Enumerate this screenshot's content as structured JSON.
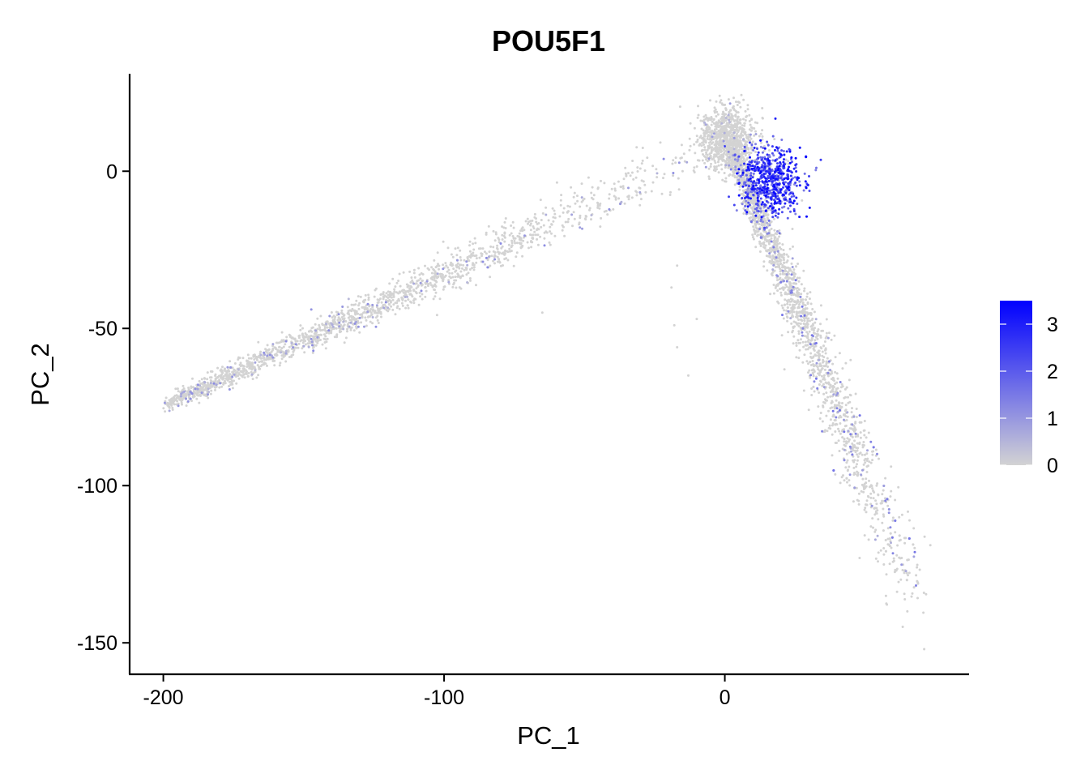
{
  "chart_data": {
    "type": "scatter",
    "title": "POU5F1",
    "xlabel": "PC_1",
    "ylabel": "PC_2",
    "xlim": [
      -212,
      87
    ],
    "ylim": [
      -160,
      31
    ],
    "x_ticks": [
      -200,
      -100,
      0
    ],
    "y_ticks": [
      0,
      -50,
      -100,
      -150
    ],
    "x_tick_labels": [
      "-200",
      "-100",
      "0"
    ],
    "y_tick_labels": [
      "0",
      "-50",
      "-100",
      "-150"
    ],
    "grid": false,
    "legend": {
      "position": "right",
      "type": "colorbar",
      "range": [
        0,
        3.5
      ],
      "ticks": [
        3,
        2,
        1,
        0
      ],
      "tick_labels": [
        "3",
        "2",
        "1",
        "0"
      ],
      "low_color": "#d3d3d3",
      "high_color": "#0000ff"
    },
    "point_color_low": "#d3d3d3",
    "point_color_high": "#0000ff",
    "clusters": [
      {
        "name": "left arm",
        "from": [
          -198,
          -74
        ],
        "to": [
          -8,
          6
        ],
        "spread": 3.2,
        "count": 1700,
        "expr_prob": 0.06,
        "expr_max": 1.2
      },
      {
        "name": "peak",
        "center": [
          1,
          10
        ],
        "spread": 5,
        "count": 900,
        "expr_prob": 0.03,
        "expr_max": 1.0
      },
      {
        "name": "right arm",
        "from": [
          3,
          6
        ],
        "to": [
          70,
          -140
        ],
        "spread": 3.4,
        "count": 1900,
        "expr_prob": 0.08,
        "expr_max": 1.6
      },
      {
        "name": "expressing cluster",
        "center": [
          16,
          -3
        ],
        "spread": 5.5,
        "count": 650,
        "expr_prob": 0.95,
        "expr_max": 3.5
      }
    ],
    "outliers": [
      [
        -198,
        -74
      ],
      [
        -186,
        -70
      ],
      [
        -173,
        -66
      ],
      [
        -172,
        -65
      ],
      [
        -65,
        -45
      ],
      [
        -17,
        -56
      ],
      [
        -13,
        -65
      ],
      [
        -18,
        -49
      ],
      [
        48,
        -123
      ],
      [
        71,
        -152
      ],
      [
        65,
        -140
      ],
      [
        -78,
        -15
      ],
      [
        -17,
        -30
      ],
      [
        -19,
        -37
      ],
      [
        -10,
        -47
      ]
    ]
  }
}
